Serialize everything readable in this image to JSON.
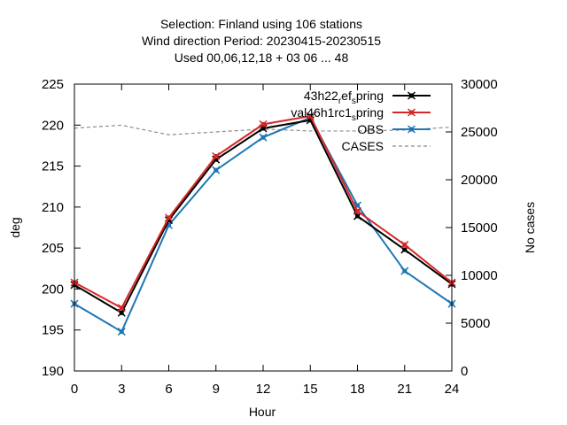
{
  "chart_data": {
    "type": "line",
    "title_lines": [
      "Selection: Finland using   106 stations",
      "Wind direction   Period: 20230415-20230515",
      "Used  00,06,12,18  + 03 06 ... 48"
    ],
    "xlabel": "Hour",
    "ylabel": "deg",
    "y2label": "No cases",
    "x": [
      0,
      3,
      6,
      9,
      12,
      15,
      18,
      21,
      24
    ],
    "xlim": [
      0,
      24
    ],
    "ylim": [
      190,
      225
    ],
    "y2lim": [
      0,
      30000
    ],
    "x_ticks": [
      "0",
      "3",
      "6",
      "9",
      "12",
      "15",
      "18",
      "21",
      "24"
    ],
    "y_ticks": [
      "190",
      "195",
      "200",
      "205",
      "210",
      "215",
      "220",
      "225"
    ],
    "y2_ticks": [
      "0",
      "5000",
      "10000",
      "15000",
      "20000",
      "25000",
      "30000"
    ],
    "grid": false,
    "legend_position": "top-right",
    "series": [
      {
        "name": "43h22_ref_spring",
        "legend_parts": [
          "43h22",
          "r",
          "ef",
          "s",
          "pring"
        ],
        "axis": "y",
        "color": "#000000",
        "marker": "x-filled",
        "dash": "solid",
        "values": [
          200.5,
          197.1,
          208.4,
          215.8,
          219.6,
          220.6,
          208.9,
          204.8,
          200.6
        ]
      },
      {
        "name": "val46h1rc1_spring",
        "legend_parts": [
          "val46h1rc1",
          "s",
          "pring"
        ],
        "axis": "y",
        "color": "#d62728",
        "marker": "x-filled",
        "dash": "solid",
        "values": [
          200.8,
          197.7,
          208.7,
          216.2,
          220.1,
          221.1,
          209.5,
          205.4,
          200.8
        ]
      },
      {
        "name": "OBS",
        "axis": "y",
        "color": "#1f77b4",
        "marker": "x-filled",
        "dash": "solid",
        "values": [
          198.2,
          194.8,
          207.8,
          214.5,
          218.5,
          220.9,
          210.2,
          202.2,
          198.2
        ]
      },
      {
        "name": "CASES",
        "axis": "y2",
        "color": "#8c8c8c",
        "marker": "none",
        "dash": "dashed",
        "values": [
          25400,
          25700,
          24700,
          25000,
          25300,
          25100,
          25100,
          25200,
          25500
        ]
      }
    ]
  }
}
